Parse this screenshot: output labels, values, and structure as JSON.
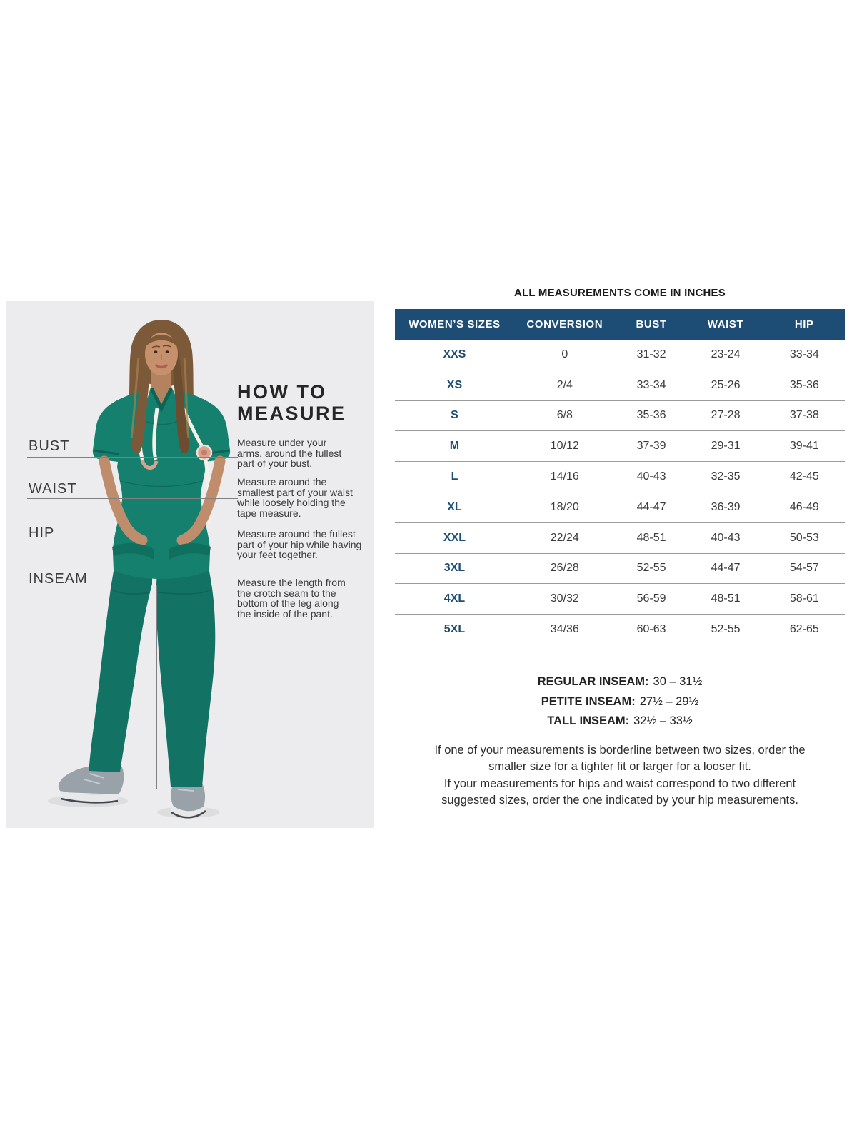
{
  "left_panel": {
    "heading": "HOW TO\nMEASURE",
    "measurements": [
      {
        "label": "BUST",
        "description": "Measure under your\narms, around the fullest\npart of your bust."
      },
      {
        "label": "WAIST",
        "description": "Measure around the\nsmallest part of your waist\nwhile loosely holding the\ntape measure."
      },
      {
        "label": "HIP",
        "description": "Measure around the fullest\npart of your hip while having\nyour feet together."
      },
      {
        "label": "INSEAM",
        "description": "Measure the length from\nthe crotch seam to the\nbottom of the leg along\nthe inside of the pant."
      }
    ]
  },
  "size_chart": {
    "note": "ALL MEASUREMENTS COME IN INCHES",
    "columns": [
      "WOMEN’S SIZES",
      "CONVERSION",
      "BUST",
      "WAIST",
      "HIP"
    ],
    "rows": [
      {
        "size": "XXS",
        "conversion": "0",
        "bust": "31-32",
        "waist": "23-24",
        "hip": "33-34"
      },
      {
        "size": "XS",
        "conversion": "2/4",
        "bust": "33-34",
        "waist": "25-26",
        "hip": "35-36"
      },
      {
        "size": "S",
        "conversion": "6/8",
        "bust": "35-36",
        "waist": "27-28",
        "hip": "37-38"
      },
      {
        "size": "M",
        "conversion": "10/12",
        "bust": "37-39",
        "waist": "29-31",
        "hip": "39-41"
      },
      {
        "size": "L",
        "conversion": "14/16",
        "bust": "40-43",
        "waist": "32-35",
        "hip": "42-45"
      },
      {
        "size": "XL",
        "conversion": "18/20",
        "bust": "44-47",
        "waist": "36-39",
        "hip": "46-49"
      },
      {
        "size": "XXL",
        "conversion": "22/24",
        "bust": "48-51",
        "waist": "40-43",
        "hip": "50-53"
      },
      {
        "size": "3XL",
        "conversion": "26/28",
        "bust": "52-55",
        "waist": "44-47",
        "hip": "54-57"
      },
      {
        "size": "4XL",
        "conversion": "30/32",
        "bust": "56-59",
        "waist": "48-51",
        "hip": "58-61"
      },
      {
        "size": "5XL",
        "conversion": "34/36",
        "bust": "60-63",
        "waist": "52-55",
        "hip": "62-65"
      }
    ],
    "inseams": [
      {
        "label": "REGULAR INSEAM:",
        "value": "30 – 31½"
      },
      {
        "label": "PETITE INSEAM:",
        "value": "27½ – 29½"
      },
      {
        "label": "TALL INSEAM:",
        "value": "32½ – 33½"
      }
    ],
    "notes": [
      "If one of your measurements is borderline between two sizes, order the\nsmaller size for a tighter fit or larger for a looser fit.",
      "If your measurements for hips and waist correspond to two different\nsuggested sizes, order the one indicated by your hip measurements."
    ]
  },
  "colors": {
    "table_header_bg": "#1d4c74",
    "size_label_text": "#1d4c74",
    "scrubs_teal": "#16806e",
    "panel_bg": "#ececee"
  }
}
